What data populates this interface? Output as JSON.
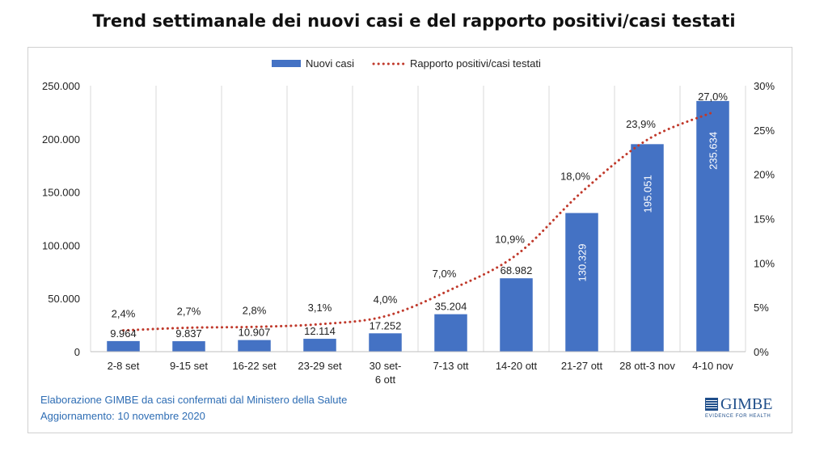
{
  "title": "Trend settimanale dei nuovi casi e del rapporto positivi/casi testati",
  "chart_data": {
    "type": "bar",
    "categories": [
      "2-8 set",
      "9-15 set",
      "16-22 set",
      "23-29 set",
      "30 set-6 ott",
      "7-13 ott",
      "14-20 ott",
      "21-27 ott",
      "28 ott-3 nov",
      "4-10 nov"
    ],
    "category_lines": [
      [
        "2-8 set"
      ],
      [
        "9-15 set"
      ],
      [
        "16-22 set"
      ],
      [
        "23-29 set"
      ],
      [
        "30 set-",
        "6 ott"
      ],
      [
        "7-13 ott"
      ],
      [
        "14-20 ott"
      ],
      [
        "21-27 ott"
      ],
      [
        "28 ott-3 nov"
      ],
      [
        "4-10 nov"
      ]
    ],
    "series": [
      {
        "name": "Nuovi casi",
        "type": "bar",
        "axis": "left",
        "color": "#4472c4",
        "values": [
          9964,
          9837,
          10907,
          12114,
          17252,
          35204,
          68982,
          130329,
          195051,
          235634
        ],
        "labels": [
          "9.964",
          "9.837",
          "10.907",
          "12.114",
          "17.252",
          "35.204",
          "68.982",
          "130.329",
          "195.051",
          "235.634"
        ]
      },
      {
        "name": "Rapporto positivi/casi testati",
        "type": "line",
        "style": "dotted",
        "axis": "right",
        "color": "#c0392b",
        "values": [
          2.4,
          2.7,
          2.8,
          3.1,
          4.0,
          7.0,
          10.9,
          18.0,
          23.9,
          27.0
        ],
        "labels": [
          "2,4%",
          "2,7%",
          "2,8%",
          "3,1%",
          "4,0%",
          "7,0%",
          "10,9%",
          "18,0%",
          "23,9%",
          "27,0%"
        ]
      }
    ],
    "y_left": {
      "range": [
        0,
        250000
      ],
      "ticks": [
        0,
        50000,
        100000,
        150000,
        200000,
        250000
      ],
      "tick_labels": [
        "0",
        "50.000",
        "100.000",
        "150.000",
        "200.000",
        "250.000"
      ]
    },
    "y_right": {
      "range": [
        0,
        30
      ],
      "ticks": [
        0,
        5,
        10,
        15,
        20,
        25,
        30
      ],
      "tick_labels": [
        "0%",
        "5%",
        "10%",
        "15%",
        "20%",
        "25%",
        "30%"
      ]
    },
    "grid": "vertical",
    "legend_position": "top"
  },
  "footer": {
    "line1": "Elaborazione GIMBE da casi confermati dal Ministero della Salute",
    "line2": "Aggiornamento: 10 novembre 2020"
  },
  "logo": {
    "name": "GIMBE",
    "tagline": "EVIDENCE FOR HEALTH"
  }
}
